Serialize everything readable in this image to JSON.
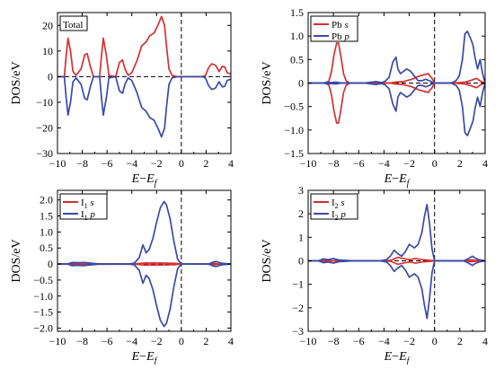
{
  "chart_data": [
    {
      "type": "line",
      "panel": "top-left",
      "title": "",
      "xlabel": "E−Ef",
      "ylabel": "DOS/eV",
      "xlim": [
        -10,
        4
      ],
      "ylim": [
        -30,
        25
      ],
      "xticks": [
        -10,
        -8,
        -6,
        -4,
        -2,
        0,
        2,
        4
      ],
      "yticks": [
        -30,
        -20,
        -10,
        0,
        10,
        20
      ],
      "ytick_labels": [
        "−30",
        "−20",
        "−10",
        "0",
        "10",
        "20"
      ],
      "legend": {
        "placement": "top-left",
        "entries": [
          {
            "label": "Total",
            "color": ""
          }
        ]
      },
      "fermi_level_x": 0,
      "series": [
        {
          "name": "Total",
          "color": "#d63030",
          "x": [
            -10.0,
            -9.45,
            -9.3,
            -9.15,
            -8.95,
            -8.75,
            -8.5,
            -8.1,
            -7.8,
            -7.6,
            -7.35,
            -7.1,
            -6.6,
            -6.45,
            -6.3,
            -6.05,
            -5.85,
            -5.3,
            -5.0,
            -4.75,
            -4.55,
            -4.3,
            -4.0,
            -3.6,
            -3.2,
            -2.85,
            -2.55,
            -2.2,
            -1.9,
            -1.6,
            -1.35,
            -1.2,
            -1.0,
            -0.75,
            -0.5,
            -0.3,
            0.0,
            1.7,
            1.95,
            2.2,
            2.45,
            2.75,
            3.05,
            3.3,
            3.5,
            3.7,
            4.0
          ],
          "y": [
            0,
            0,
            8,
            15,
            10,
            2,
            0.5,
            3,
            8.5,
            9,
            4,
            0,
            0,
            8,
            15,
            8,
            0.5,
            0,
            5.5,
            6.5,
            3,
            0.5,
            1.5,
            6,
            12,
            13.5,
            16,
            17,
            20,
            23.5,
            20,
            12,
            3,
            0.5,
            0.2,
            0,
            0,
            0,
            0.5,
            3.5,
            5,
            4.5,
            2,
            4,
            3.8,
            1.5,
            1
          ]
        },
        {
          "name": "",
          "color": "#3a4aa6",
          "x": [
            -10.0,
            -9.45,
            -9.3,
            -9.15,
            -8.95,
            -8.75,
            -8.5,
            -8.1,
            -7.8,
            -7.6,
            -7.35,
            -7.1,
            -6.6,
            -6.45,
            -6.3,
            -6.05,
            -5.85,
            -5.3,
            -5.0,
            -4.75,
            -4.55,
            -4.3,
            -4.0,
            -3.6,
            -3.2,
            -2.85,
            -2.55,
            -2.2,
            -1.9,
            -1.6,
            -1.35,
            -1.2,
            -1.0,
            -0.75,
            -0.5,
            -0.3,
            0.0,
            1.7,
            1.95,
            2.2,
            2.45,
            2.75,
            3.05,
            3.3,
            3.5,
            3.7,
            4.0
          ],
          "y": [
            0,
            0,
            -8,
            -15,
            -10,
            -2,
            -0.5,
            -3,
            -8.5,
            -9,
            -4,
            0,
            0,
            -8,
            -15,
            -8,
            -0.5,
            0,
            -5.5,
            -6.5,
            -3,
            -0.5,
            -1.5,
            -6,
            -12,
            -13.5,
            -16,
            -17,
            -20,
            -23.5,
            -20,
            -12,
            -3,
            -0.5,
            -0.2,
            0,
            0,
            0,
            -0.5,
            -3.5,
            -5,
            -4.5,
            -2,
            -4,
            -3.8,
            -1.5,
            -1
          ]
        }
      ]
    },
    {
      "type": "line",
      "panel": "top-right",
      "title": "",
      "xlabel": "E−Ef",
      "ylabel": "DOS/eV",
      "xlim": [
        -10,
        4
      ],
      "ylim": [
        -1.5,
        1.5
      ],
      "xticks": [
        -10,
        -8,
        -6,
        -4,
        -2,
        0,
        2,
        4
      ],
      "yticks": [
        -1.5,
        -1.0,
        -0.5,
        0,
        0.5,
        1.0,
        1.5
      ],
      "ytick_labels": [
        "−1.5",
        "−1.0",
        "−0.5",
        "0",
        "0.5",
        "1.0",
        "1.5"
      ],
      "legend": {
        "placement": "top-left",
        "entries": [
          {
            "label": "Pb s",
            "color": "#d63030"
          },
          {
            "label": "Pb p",
            "color": "#3a4aa6"
          }
        ]
      },
      "fermi_level_x": 0,
      "series": [
        {
          "name": "Pb s",
          "color": "#d63030",
          "x": [
            -10.0,
            -8.6,
            -8.35,
            -8.15,
            -7.95,
            -7.75,
            -7.6,
            -7.4,
            -7.2,
            -7.0,
            -6.7,
            -3.5,
            -3.1,
            -2.5,
            -1.8,
            -1.2,
            -0.5,
            -0.2,
            0.0,
            1.5,
            2.4,
            2.9,
            3.3,
            3.7,
            4.0
          ],
          "y": [
            0,
            0,
            0.05,
            0.25,
            0.6,
            0.85,
            0.85,
            0.55,
            0.2,
            0.05,
            0,
            0,
            0.02,
            0.03,
            0.08,
            0.15,
            0.2,
            0.1,
            0,
            0,
            0.02,
            0.06,
            0.1,
            0.03,
            0
          ]
        },
        {
          "name": "",
          "color": "#d63030",
          "x": [
            -10.0,
            -8.6,
            -8.35,
            -8.15,
            -7.95,
            -7.75,
            -7.6,
            -7.4,
            -7.2,
            -7.0,
            -6.7,
            -3.5,
            -3.1,
            -2.5,
            -1.8,
            -1.2,
            -0.5,
            -0.2,
            0.0,
            1.5,
            2.4,
            2.9,
            3.3,
            3.7,
            4.0
          ],
          "y": [
            0,
            0,
            -0.05,
            -0.25,
            -0.6,
            -0.85,
            -0.85,
            -0.55,
            -0.2,
            -0.05,
            0,
            0,
            -0.02,
            -0.03,
            -0.08,
            -0.15,
            -0.2,
            -0.1,
            0,
            0,
            -0.02,
            -0.06,
            -0.1,
            -0.03,
            0
          ]
        },
        {
          "name": "Pb p",
          "color": "#3a4aa6",
          "x": [
            -10.0,
            -8.8,
            -8.5,
            -8.2,
            -7.8,
            -7.4,
            -6.5,
            -5.5,
            -5.0,
            -4.6,
            -4.2,
            -3.9,
            -3.6,
            -3.3,
            -3.05,
            -2.9,
            -2.7,
            -2.45,
            -2.2,
            -1.9,
            -1.6,
            -1.3,
            -1.0,
            -0.7,
            -0.4,
            -0.2,
            0.0,
            1.3,
            1.7,
            1.95,
            2.2,
            2.4,
            2.6,
            2.85,
            3.05,
            3.2,
            3.4,
            3.6,
            3.8,
            4.0
          ],
          "y": [
            0,
            0,
            0.02,
            0.01,
            0.02,
            0,
            0,
            0,
            0.02,
            0.03,
            0.01,
            0.04,
            0.12,
            0.45,
            0.55,
            0.3,
            0.2,
            0.25,
            0.3,
            0.25,
            0.15,
            0.05,
            0.05,
            0.08,
            0.05,
            0.02,
            0,
            0,
            0.05,
            0.15,
            0.5,
            1.05,
            1.1,
            0.95,
            0.8,
            0.55,
            0.3,
            0.5,
            0.2,
            0
          ]
        },
        {
          "name": "",
          "color": "#3a4aa6",
          "x": [
            -10.0,
            -8.8,
            -8.5,
            -8.2,
            -7.8,
            -7.4,
            -6.5,
            -5.5,
            -5.0,
            -4.6,
            -4.2,
            -3.9,
            -3.6,
            -3.3,
            -3.05,
            -2.9,
            -2.7,
            -2.45,
            -2.2,
            -1.9,
            -1.6,
            -1.3,
            -1.0,
            -0.7,
            -0.4,
            -0.2,
            0.0,
            1.3,
            1.7,
            1.95,
            2.2,
            2.4,
            2.6,
            2.85,
            3.05,
            3.2,
            3.4,
            3.6,
            3.8,
            4.0
          ],
          "y": [
            0,
            0,
            -0.02,
            -0.01,
            -0.02,
            0,
            0,
            0,
            -0.02,
            -0.03,
            -0.01,
            -0.04,
            -0.12,
            -0.45,
            -0.6,
            -0.3,
            -0.2,
            -0.25,
            -0.3,
            -0.25,
            -0.15,
            -0.05,
            -0.05,
            -0.08,
            -0.05,
            -0.02,
            0,
            0,
            -0.05,
            -0.15,
            -0.5,
            -1.05,
            -1.12,
            -0.95,
            -0.8,
            -0.55,
            -0.3,
            -0.5,
            -0.2,
            0
          ]
        }
      ]
    },
    {
      "type": "line",
      "panel": "bottom-left",
      "title": "",
      "xlabel": "E−Ef",
      "ylabel": "DOS/eV",
      "xlim": [
        -10,
        4
      ],
      "ylim": [
        -2.1,
        2.3
      ],
      "xticks": [
        -10,
        -8,
        -6,
        -4,
        -2,
        0,
        2,
        4
      ],
      "yticks": [
        -2.0,
        -1.5,
        -1.0,
        -0.5,
        0,
        0.5,
        1.0,
        1.5,
        2.0
      ],
      "ytick_labels": [
        "−2.0",
        "−1.5",
        "−1.0",
        "−0.5",
        "0",
        "0.5",
        "1.0",
        "1.5",
        "2.0"
      ],
      "legend": {
        "placement": "top-left",
        "entries": [
          {
            "label": "I1 s",
            "color": "#d63030"
          },
          {
            "label": "I1 p",
            "color": "#3a4aa6"
          }
        ]
      },
      "fermi_level_x": 0,
      "series": [
        {
          "name": "I1 s",
          "color": "#d63030",
          "x": [
            -10.0,
            -9.0,
            -8.8,
            -8.5,
            -7.6,
            -7.3,
            -4.0,
            -3.3,
            -3.0,
            -2.5,
            -1.5,
            -0.5,
            0.0,
            2.4,
            2.7,
            3.0,
            4.0
          ],
          "y": [
            0,
            0,
            0.02,
            0,
            0,
            0.01,
            0,
            0.02,
            0.03,
            0.03,
            0.03,
            0.02,
            0,
            0,
            0.02,
            0,
            0
          ]
        },
        {
          "name": "",
          "color": "#d63030",
          "x": [
            -10.0,
            -9.0,
            -8.8,
            -8.5,
            -7.6,
            -7.3,
            -4.0,
            -3.3,
            -3.0,
            -2.5,
            -1.5,
            -0.5,
            0.0,
            2.4,
            2.7,
            3.0,
            4.0
          ],
          "y": [
            0,
            0,
            -0.02,
            0,
            0,
            -0.01,
            0,
            -0.02,
            -0.03,
            -0.03,
            -0.03,
            -0.02,
            0,
            0,
            -0.02,
            0,
            0
          ]
        },
        {
          "name": "I1 p",
          "color": "#3a4aa6",
          "x": [
            -10.0,
            -9.2,
            -8.8,
            -8.4,
            -7.9,
            -7.4,
            -6.6,
            -4.2,
            -3.8,
            -3.4,
            -3.1,
            -2.85,
            -2.6,
            -2.3,
            -2.0,
            -1.7,
            -1.4,
            -1.2,
            -0.9,
            -0.6,
            -0.3,
            0.0,
            2.2,
            2.5,
            2.8,
            3.1,
            3.4,
            4.0
          ],
          "y": [
            0,
            0,
            0.05,
            0.04,
            0.05,
            0.03,
            0,
            0,
            0.03,
            0.2,
            0.6,
            0.35,
            0.45,
            0.8,
            1.3,
            1.75,
            1.95,
            1.85,
            1.4,
            0.7,
            0.15,
            0,
            0,
            0.05,
            0.08,
            0.04,
            0.02,
            0
          ]
        },
        {
          "name": "",
          "color": "#3a4aa6",
          "x": [
            -10.0,
            -9.2,
            -8.8,
            -8.4,
            -7.9,
            -7.4,
            -6.6,
            -4.2,
            -3.8,
            -3.4,
            -3.1,
            -2.85,
            -2.6,
            -2.3,
            -2.0,
            -1.7,
            -1.4,
            -1.2,
            -0.9,
            -0.6,
            -0.3,
            0.0,
            2.2,
            2.5,
            2.8,
            3.1,
            3.4,
            4.0
          ],
          "y": [
            0,
            0,
            -0.05,
            -0.04,
            -0.05,
            -0.03,
            0,
            0,
            -0.03,
            -0.2,
            -0.6,
            -0.35,
            -0.45,
            -0.8,
            -1.3,
            -1.75,
            -1.95,
            -1.85,
            -1.4,
            -0.7,
            -0.15,
            0,
            0,
            -0.05,
            -0.08,
            -0.04,
            -0.02,
            0
          ]
        }
      ]
    },
    {
      "type": "line",
      "panel": "bottom-right",
      "title": "",
      "xlabel": "E−Ef",
      "ylabel": "DOS/eV",
      "xlim": [
        -10,
        4
      ],
      "ylim": [
        -3,
        3
      ],
      "xticks": [
        -10,
        -8,
        -6,
        -4,
        -2,
        0,
        2,
        4
      ],
      "yticks": [
        -3,
        -2,
        -1,
        0,
        1,
        2,
        3
      ],
      "ytick_labels": [
        "−3",
        "−2",
        "−1",
        "0",
        "1",
        "2",
        "3"
      ],
      "legend": {
        "placement": "top-left",
        "entries": [
          {
            "label": "I2 s",
            "color": "#d63030"
          },
          {
            "label": "I2 p",
            "color": "#3a4aa6"
          }
        ]
      },
      "fermi_level_x": 0,
      "series": [
        {
          "name": "I2 s",
          "color": "#d63030",
          "x": [
            -10.0,
            -9.0,
            -8.7,
            -8.4,
            -4.0,
            -3.5,
            -3.2,
            -2.9,
            -2.5,
            -2.0,
            -1.5,
            -1.0,
            -0.5,
            0.0,
            2.5,
            2.9,
            3.2,
            4.0
          ],
          "y": [
            0,
            0,
            0.02,
            0,
            0,
            0.02,
            0.08,
            0.15,
            0.1,
            0.05,
            0.1,
            0.05,
            0.03,
            0,
            0,
            0.04,
            0.02,
            0
          ]
        },
        {
          "name": "",
          "color": "#d63030",
          "x": [
            -10.0,
            -9.0,
            -8.7,
            -8.4,
            -4.0,
            -3.5,
            -3.2,
            -2.9,
            -2.5,
            -2.0,
            -1.5,
            -1.0,
            -0.5,
            0.0,
            2.5,
            2.9,
            3.2,
            4.0
          ],
          "y": [
            0,
            0,
            -0.02,
            0,
            0,
            -0.02,
            -0.08,
            -0.15,
            -0.1,
            -0.05,
            -0.1,
            -0.05,
            -0.03,
            0,
            0,
            -0.04,
            -0.02,
            0
          ]
        },
        {
          "name": "I2 p",
          "color": "#3a4aa6",
          "x": [
            -10.0,
            -9.2,
            -8.8,
            -8.4,
            -8.0,
            -7.6,
            -6.5,
            -4.3,
            -3.8,
            -3.5,
            -3.2,
            -2.9,
            -2.6,
            -2.3,
            -2.0,
            -1.6,
            -1.3,
            -1.0,
            -0.8,
            -0.6,
            -0.4,
            -0.2,
            0.0,
            2.3,
            2.7,
            3.0,
            3.2,
            3.5,
            4.0
          ],
          "y": [
            0,
            0,
            0.08,
            0.05,
            0.1,
            0.04,
            0,
            0,
            0.05,
            0.2,
            0.45,
            0.3,
            0.2,
            0.4,
            0.7,
            0.55,
            0.7,
            1.2,
            1.9,
            2.4,
            1.6,
            0.5,
            0,
            0,
            0.1,
            0.2,
            0.12,
            0.05,
            0
          ]
        },
        {
          "name": "",
          "color": "#3a4aa6",
          "x": [
            -10.0,
            -9.2,
            -8.8,
            -8.4,
            -8.0,
            -7.6,
            -6.5,
            -4.3,
            -3.8,
            -3.5,
            -3.2,
            -2.9,
            -2.6,
            -2.3,
            -2.0,
            -1.6,
            -1.3,
            -1.0,
            -0.8,
            -0.6,
            -0.4,
            -0.2,
            0.0,
            2.3,
            2.7,
            3.0,
            3.2,
            3.5,
            4.0
          ],
          "y": [
            0,
            0,
            -0.08,
            -0.05,
            -0.1,
            -0.04,
            0,
            0,
            -0.05,
            -0.2,
            -0.45,
            -0.3,
            -0.2,
            -0.4,
            -0.7,
            -0.55,
            -0.7,
            -1.2,
            -1.9,
            -2.45,
            -1.6,
            -0.5,
            0,
            0,
            -0.1,
            -0.2,
            -0.12,
            -0.05,
            0
          ]
        }
      ]
    }
  ]
}
